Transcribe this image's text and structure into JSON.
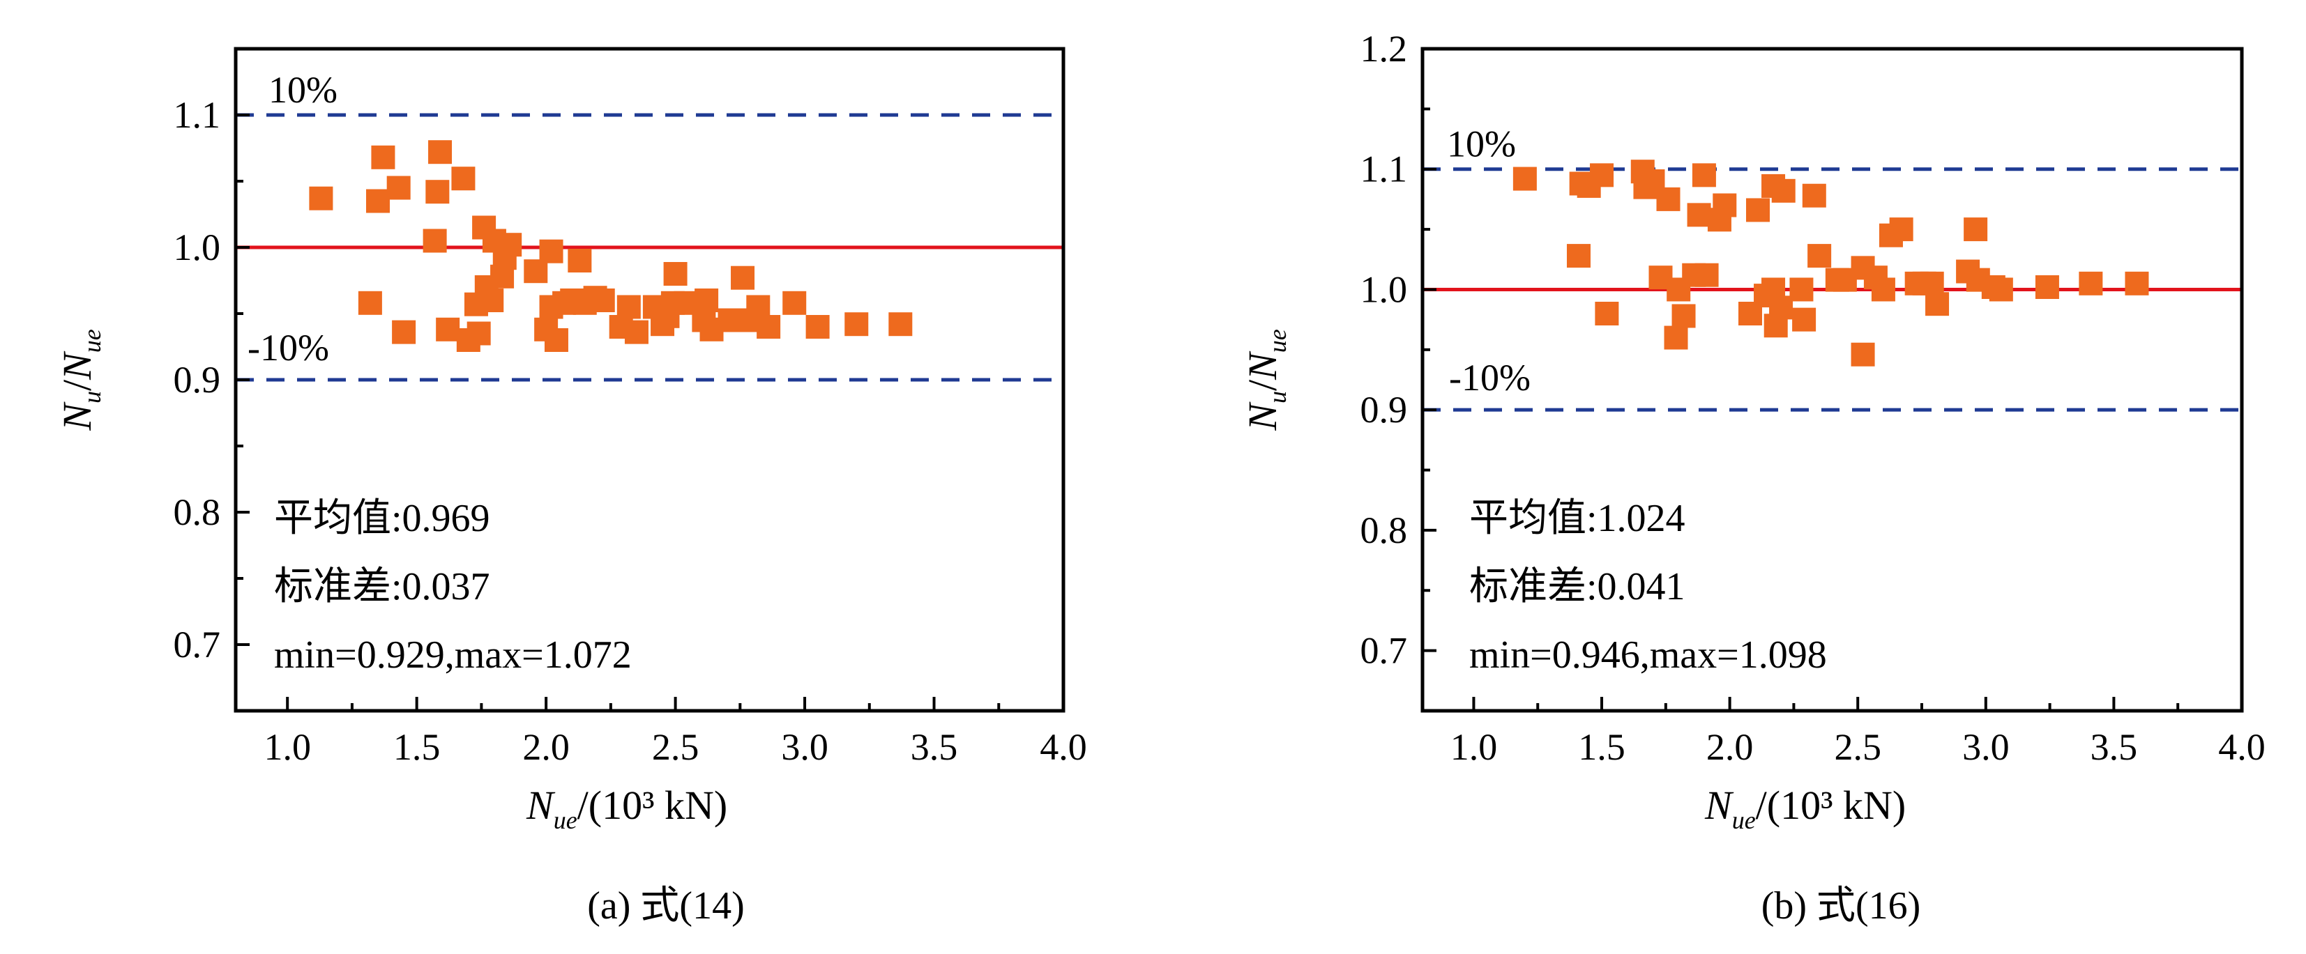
{
  "colors": {
    "marker": "#EE6A1E",
    "ref_line": "#E2131C",
    "band_line": "#1F3A93",
    "axis": "#000000"
  },
  "chart_data": [
    {
      "type": "scatter",
      "caption": "(a) 式(14)",
      "xlabel": {
        "main": "N",
        "sub": "ue",
        "suffix": "/(10³ kN)"
      },
      "ylabel": {
        "main1": "N",
        "sub1": "u",
        "slash": "/",
        "main2": "N",
        "sub2": "ue"
      },
      "xlim": [
        0.8,
        4.0
      ],
      "ylim": [
        0.65,
        1.15
      ],
      "xticks": [
        1.0,
        1.5,
        2.0,
        2.5,
        3.0,
        3.5,
        4.0
      ],
      "xtick_labels": [
        "1.0",
        "1.5",
        "2.0",
        "2.5",
        "3.0",
        "3.5",
        "4.0"
      ],
      "yticks": [
        0.7,
        0.8,
        0.9,
        1.0,
        1.1
      ],
      "ytick_labels": [
        "0.7",
        "0.8",
        "0.9",
        "1.0",
        "1.1"
      ],
      "reference_line": 1.0,
      "bands": [
        {
          "y": 1.1,
          "label": "10%"
        },
        {
          "y": 0.9,
          "label": "-10%"
        }
      ],
      "stats": [
        "平均值:0.969",
        "标准差:0.037",
        "min=0.929,max=1.072"
      ],
      "points": [
        [
          1.13,
          1.037
        ],
        [
          1.32,
          0.958
        ],
        [
          1.35,
          1.035
        ],
        [
          1.37,
          1.068
        ],
        [
          1.43,
          1.045
        ],
        [
          1.45,
          0.936
        ],
        [
          1.57,
          1.005
        ],
        [
          1.58,
          1.042
        ],
        [
          1.59,
          1.072
        ],
        [
          1.62,
          0.938
        ],
        [
          1.68,
          1.052
        ],
        [
          1.7,
          0.93
        ],
        [
          1.73,
          0.957
        ],
        [
          1.74,
          0.935
        ],
        [
          1.76,
          1.015
        ],
        [
          1.77,
          0.97
        ],
        [
          1.79,
          0.96
        ],
        [
          1.8,
          1.005
        ],
        [
          1.83,
          0.978
        ],
        [
          1.84,
          0.992
        ],
        [
          1.86,
          1.002
        ],
        [
          1.96,
          0.982
        ],
        [
          2.0,
          0.938
        ],
        [
          2.02,
          0.955
        ],
        [
          2.02,
          0.997
        ],
        [
          2.04,
          0.93
        ],
        [
          2.07,
          0.958
        ],
        [
          2.1,
          0.96
        ],
        [
          2.13,
          0.99
        ],
        [
          2.15,
          0.958
        ],
        [
          2.19,
          0.962
        ],
        [
          2.22,
          0.96
        ],
        [
          2.29,
          0.94
        ],
        [
          2.32,
          0.955
        ],
        [
          2.35,
          0.936
        ],
        [
          2.42,
          0.955
        ],
        [
          2.45,
          0.942
        ],
        [
          2.47,
          0.948
        ],
        [
          2.49,
          0.958
        ],
        [
          2.5,
          0.98
        ],
        [
          2.54,
          0.958
        ],
        [
          2.61,
          0.945
        ],
        [
          2.62,
          0.96
        ],
        [
          2.64,
          0.938
        ],
        [
          2.71,
          0.945
        ],
        [
          2.76,
          0.977
        ],
        [
          2.79,
          0.945
        ],
        [
          2.82,
          0.955
        ],
        [
          2.86,
          0.94
        ],
        [
          2.96,
          0.958
        ],
        [
          3.05,
          0.94
        ],
        [
          3.2,
          0.942
        ],
        [
          3.37,
          0.942
        ]
      ]
    },
    {
      "type": "scatter",
      "caption": "(b) 式(16)",
      "xlabel": {
        "main": "N",
        "sub": "ue",
        "suffix": "/(10³ kN)"
      },
      "ylabel": {
        "main1": "N",
        "sub1": "u",
        "slash": "/",
        "main2": "N",
        "sub2": "ue"
      },
      "xlim": [
        0.8,
        4.0
      ],
      "ylim": [
        0.65,
        1.2
      ],
      "xticks": [
        1.0,
        1.5,
        2.0,
        2.5,
        3.0,
        3.5,
        4.0
      ],
      "xtick_labels": [
        "1.0",
        "1.5",
        "2.0",
        "2.5",
        "3.0",
        "3.5",
        "4.0"
      ],
      "yticks": [
        0.7,
        0.8,
        0.9,
        1.0,
        1.1,
        1.2
      ],
      "ytick_labels": [
        "0.7",
        "0.8",
        "0.9",
        "1.0",
        "1.1",
        "1.2"
      ],
      "reference_line": 1.0,
      "bands": [
        {
          "y": 1.1,
          "label": "10%"
        },
        {
          "y": 0.9,
          "label": "-10%"
        }
      ],
      "stats": [
        "平均值:1.024",
        "标准差:0.041",
        "min=0.946,max=1.098"
      ],
      "points": [
        [
          1.2,
          1.092
        ],
        [
          1.41,
          1.028
        ],
        [
          1.42,
          1.088
        ],
        [
          1.45,
          1.086
        ],
        [
          1.5,
          1.095
        ],
        [
          1.52,
          0.98
        ],
        [
          1.66,
          1.098
        ],
        [
          1.67,
          1.085
        ],
        [
          1.7,
          1.09
        ],
        [
          1.73,
          1.01
        ],
        [
          1.76,
          1.075
        ],
        [
          1.79,
          0.96
        ],
        [
          1.8,
          1.0
        ],
        [
          1.82,
          0.978
        ],
        [
          1.86,
          1.012
        ],
        [
          1.88,
          1.062
        ],
        [
          1.9,
          1.095
        ],
        [
          1.91,
          1.012
        ],
        [
          1.96,
          1.058
        ],
        [
          1.98,
          1.07
        ],
        [
          2.08,
          0.98
        ],
        [
          2.11,
          1.066
        ],
        [
          2.14,
          0.995
        ],
        [
          2.17,
          1.086
        ],
        [
          2.17,
          1.0
        ],
        [
          2.18,
          0.97
        ],
        [
          2.2,
          0.985
        ],
        [
          2.21,
          1.082
        ],
        [
          2.28,
          1.0
        ],
        [
          2.29,
          0.975
        ],
        [
          2.33,
          1.078
        ],
        [
          2.35,
          1.028
        ],
        [
          2.42,
          1.008
        ],
        [
          2.45,
          1.008
        ],
        [
          2.52,
          0.946
        ],
        [
          2.52,
          1.018
        ],
        [
          2.57,
          1.01
        ],
        [
          2.6,
          1.0
        ],
        [
          2.63,
          1.045
        ],
        [
          2.67,
          1.05
        ],
        [
          2.73,
          1.005
        ],
        [
          2.76,
          1.005
        ],
        [
          2.79,
          1.005
        ],
        [
          2.81,
          0.988
        ],
        [
          2.93,
          1.015
        ],
        [
          2.96,
          1.05
        ],
        [
          2.97,
          1.008
        ],
        [
          3.03,
          1.002
        ],
        [
          3.06,
          1.0
        ],
        [
          3.24,
          1.002
        ],
        [
          3.41,
          1.005
        ],
        [
          3.59,
          1.005
        ]
      ]
    }
  ]
}
